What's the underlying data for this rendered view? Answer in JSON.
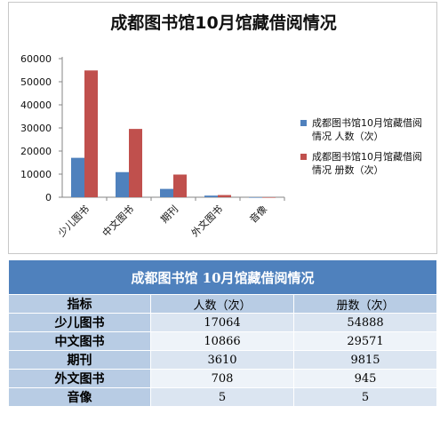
{
  "chart_data": {
    "type": "bar",
    "title": "成都图书馆10月馆藏借阅情况",
    "categories": [
      "少儿图书",
      "中文图书",
      "期刊",
      "外文图书",
      "音像"
    ],
    "series": [
      {
        "name": "成都图书馆10月馆藏借阅情况 人数（次）",
        "values": [
          17064,
          10866,
          3610,
          708,
          5
        ],
        "color": "#4f81bd"
      },
      {
        "name": "成都图书馆10月馆藏借阅情况 册数（次）",
        "values": [
          54888,
          29571,
          9815,
          945,
          5
        ],
        "color": "#c0504d"
      }
    ],
    "yticks": [
      "0",
      "10000",
      "20000",
      "30000",
      "40000",
      "50000",
      "60000"
    ],
    "ylim": [
      0,
      60000
    ],
    "grid": false,
    "legend_position": "right"
  },
  "table": {
    "title": "成都图书馆 10月馆藏借阅情况",
    "headers": [
      "指标",
      "人数（次）",
      "册数（次）"
    ],
    "rows": [
      [
        "少儿图书",
        "17064",
        "54888"
      ],
      [
        "中文图书",
        "10866",
        "29571"
      ],
      [
        "期刊",
        "3610",
        "9815"
      ],
      [
        "外文图书",
        "708",
        "945"
      ],
      [
        "音像",
        "5",
        "5"
      ]
    ]
  }
}
